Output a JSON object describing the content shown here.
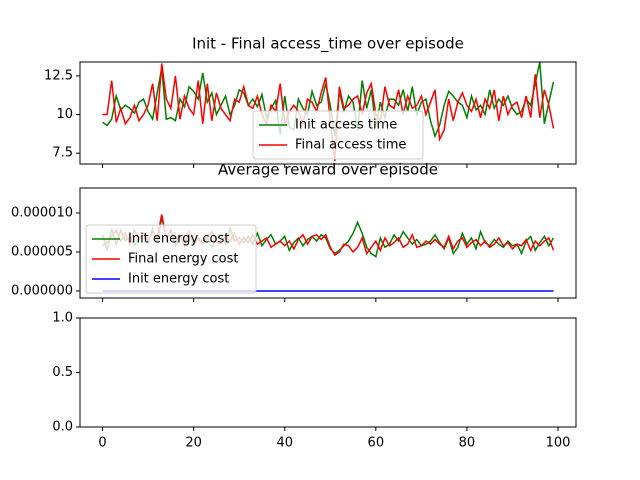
{
  "chart_data": [
    {
      "type": "line",
      "title": "Init - Final access_time over episode",
      "x": [
        0,
        1,
        2,
        3,
        4,
        5,
        6,
        7,
        8,
        9,
        10,
        11,
        12,
        13,
        14,
        15,
        16,
        17,
        18,
        19,
        20,
        21,
        22,
        23,
        24,
        25,
        26,
        27,
        28,
        29,
        30,
        31,
        32,
        33,
        34,
        35,
        36,
        37,
        38,
        39,
        40,
        41,
        42,
        43,
        44,
        45,
        46,
        47,
        48,
        49,
        50,
        51,
        52,
        53,
        54,
        55,
        56,
        57,
        58,
        59,
        60,
        61,
        62,
        63,
        64,
        65,
        66,
        67,
        68,
        69,
        70,
        71,
        72,
        73,
        74,
        75,
        76,
        77,
        78,
        79,
        80,
        81,
        82,
        83,
        84,
        85,
        86,
        87,
        88,
        89,
        90,
        91,
        92,
        93,
        94,
        95,
        96,
        97,
        98,
        99
      ],
      "series": [
        {
          "name": "Init access time",
          "color": "#008000",
          "values": [
            9.5,
            9.3,
            9.7,
            11.2,
            10.3,
            10.6,
            10.4,
            10.1,
            10.8,
            11.0,
            10.2,
            9.7,
            11.4,
            13.0,
            9.7,
            9.8,
            9.6,
            11.0,
            10.5,
            11.8,
            11.5,
            11.0,
            12.7,
            10.8,
            11.4,
            10.0,
            10.6,
            11.2,
            10.0,
            10.6,
            11.6,
            11.4,
            10.6,
            11.0,
            10.5,
            11.3,
            9.8,
            10.4,
            10.9,
            8.7,
            11.2,
            9.2,
            9.0,
            11.0,
            10.4,
            10.0,
            11.5,
            10.6,
            10.8,
            12.0,
            10.6,
            8.6,
            11.5,
            10.2,
            11.2,
            10.8,
            9.0,
            12.2,
            10.4,
            11.6,
            9.2,
            10.8,
            9.8,
            11.0,
            11.0,
            10.6,
            11.6,
            10.2,
            11.8,
            10.0,
            10.8,
            11.0,
            9.6,
            8.6,
            9.3,
            10.6,
            11.5,
            11.2,
            10.8,
            10.6,
            9.8,
            11.2,
            10.3,
            10.6,
            10.0,
            11.6,
            10.4,
            11.0,
            10.6,
            11.2,
            10.4,
            10.0,
            10.2,
            11.0,
            10.6,
            12.0,
            13.4,
            9.4,
            10.8,
            12.1
          ]
        },
        {
          "name": "Final access time",
          "color": "#ff0000",
          "values": [
            10.0,
            10.0,
            12.2,
            9.5,
            10.4,
            9.4,
            9.8,
            10.6,
            9.6,
            10.0,
            10.6,
            12.0,
            9.6,
            13.3,
            11.0,
            10.4,
            12.5,
            9.7,
            11.2,
            10.4,
            10.0,
            12.2,
            9.4,
            12.0,
            9.6,
            11.4,
            10.4,
            10.0,
            9.6,
            11.0,
            10.8,
            11.8,
            10.6,
            10.4,
            11.2,
            10.0,
            9.4,
            10.6,
            10.2,
            12.0,
            9.4,
            10.2,
            10.6,
            10.2,
            9.4,
            11.0,
            10.8,
            10.2,
            11.4,
            12.4,
            9.6,
            7.0,
            11.8,
            10.4,
            10.6,
            11.0,
            11.2,
            10.0,
            11.4,
            12.0,
            10.0,
            9.6,
            11.8,
            10.6,
            10.4,
            11.6,
            10.0,
            11.2,
            10.4,
            10.6,
            11.2,
            10.0,
            10.8,
            11.6,
            8.4,
            9.0,
            11.0,
            9.6,
            10.8,
            11.4,
            10.6,
            10.2,
            11.0,
            9.8,
            11.0,
            10.4,
            11.6,
            9.6,
            11.2,
            10.0,
            10.6,
            10.8,
            9.8,
            11.2,
            9.8,
            12.6,
            9.8,
            11.6,
            10.6,
            9.1
          ]
        }
      ],
      "xlim": [
        -4.95,
        103.95
      ],
      "xticks": [
        0,
        20,
        40,
        60,
        80,
        100
      ],
      "ylim": [
        6.8,
        13.4
      ],
      "yticks": [
        7.5,
        10.0,
        12.5
      ],
      "legend": "lower center"
    },
    {
      "type": "line",
      "title": "Average reward over episode",
      "x": [
        0,
        1,
        2,
        3,
        4,
        5,
        6,
        7,
        8,
        9,
        10,
        11,
        12,
        13,
        14,
        15,
        16,
        17,
        18,
        19,
        20,
        21,
        22,
        23,
        24,
        25,
        26,
        27,
        28,
        29,
        30,
        31,
        32,
        33,
        34,
        35,
        36,
        37,
        38,
        39,
        40,
        41,
        42,
        43,
        44,
        45,
        46,
        47,
        48,
        49,
        50,
        51,
        52,
        53,
        54,
        55,
        56,
        57,
        58,
        59,
        60,
        61,
        62,
        63,
        64,
        65,
        66,
        67,
        68,
        69,
        70,
        71,
        72,
        73,
        74,
        75,
        76,
        77,
        78,
        79,
        80,
        81,
        82,
        83,
        84,
        85,
        86,
        87,
        88,
        89,
        90,
        91,
        92,
        93,
        94,
        95,
        96,
        97,
        98,
        99
      ],
      "series": [
        {
          "name": "Init energy cost",
          "color": "#008000",
          "values": [
            7.2e-06,
            5.2e-06,
            8e-06,
            6e-06,
            7.8e-06,
            6.4e-06,
            7e-06,
            5.8e-06,
            6.8e-06,
            7.4e-06,
            6.2e-06,
            8e-06,
            6e-06,
            9.5e-06,
            6.6e-06,
            7.8e-06,
            5.8e-06,
            7e-06,
            6.2e-06,
            7.6e-06,
            6e-06,
            6.8e-06,
            6.2e-06,
            7e-06,
            5.6e-06,
            6.6e-06,
            7.2e-06,
            6e-06,
            8e-06,
            6.4e-06,
            6.8e-06,
            6.2e-06,
            7e-06,
            6e-06,
            7.4e-06,
            5.8e-06,
            6.6e-06,
            7.2e-06,
            6e-06,
            6.4e-06,
            7e-06,
            5.2e-06,
            6.2e-06,
            6.8e-06,
            5.8e-06,
            6.6e-06,
            7e-06,
            6.4e-06,
            7.2e-06,
            6.8e-06,
            5.4e-06,
            4.8e-06,
            5.2e-06,
            5.8e-06,
            6.4e-06,
            7.4e-06,
            8.8e-06,
            7.4e-06,
            5.6e-06,
            4.8e-06,
            4.4e-06,
            6.8e-06,
            5.6e-06,
            6e-06,
            7.2e-06,
            6.4e-06,
            7.6e-06,
            6.8e-06,
            6e-06,
            6.6e-06,
            5.8e-06,
            6e-06,
            6.4e-06,
            7.2e-06,
            6.2e-06,
            5.4e-06,
            6.8e-06,
            4.8e-06,
            5.6e-06,
            7.4e-06,
            6e-06,
            6.8e-06,
            5.4e-06,
            7.6e-06,
            6.2e-06,
            5.8e-06,
            6.6e-06,
            6e-06,
            5.6e-06,
            6.4e-06,
            5.8e-06,
            6e-06,
            4.8e-06,
            6.4e-06,
            7e-06,
            5.2e-06,
            6.2e-06,
            7e-06,
            5.8e-06,
            6.8e-06
          ]
        },
        {
          "name": "Final energy cost",
          "color": "#ff0000",
          "values": [
            5.8e-06,
            6.2e-06,
            7e-06,
            7.8e-06,
            6.4e-06,
            7.4e-06,
            6e-06,
            7.8e-06,
            6.6e-06,
            7.2e-06,
            6.6e-06,
            7.6e-06,
            6.8e-06,
            9.8e-06,
            6.6e-06,
            7.8e-06,
            6.2e-06,
            7.2e-06,
            5.8e-06,
            7.6e-06,
            6.4e-06,
            6.6e-06,
            6e-06,
            6.8e-06,
            7.6e-06,
            6.4e-06,
            6e-06,
            7e-06,
            6.4e-06,
            7.4e-06,
            6e-06,
            6.8e-06,
            6.2e-06,
            7.2e-06,
            6e-06,
            6.4e-06,
            6.8e-06,
            5.6e-06,
            6e-06,
            6.4e-06,
            5.8e-06,
            6.4e-06,
            5.4e-06,
            6.6e-06,
            7.2e-06,
            6e-06,
            7e-06,
            7.2e-06,
            6.6e-06,
            7.2e-06,
            5.6e-06,
            4.6e-06,
            5e-06,
            6e-06,
            5.8e-06,
            5e-06,
            5.6e-06,
            6.8e-06,
            4.8e-06,
            5.6e-06,
            6.4e-06,
            5.2e-06,
            6.8e-06,
            5.8e-06,
            6.2e-06,
            6.8e-06,
            5.6e-06,
            6e-06,
            7.2e-06,
            5.6e-06,
            5.8e-06,
            6.4e-06,
            6e-06,
            6.6e-06,
            6e-06,
            5.6e-06,
            7e-06,
            5.4e-06,
            6.4e-06,
            6.8e-06,
            5.6e-06,
            6.2e-06,
            6.6e-06,
            5.8e-06,
            6.4e-06,
            5.6e-06,
            6e-06,
            6.8e-06,
            5.8e-06,
            6.2e-06,
            5.4e-06,
            6e-06,
            5.8e-06,
            6.6e-06,
            5.2e-06,
            6.4e-06,
            5.8e-06,
            6.4e-06,
            6.8e-06,
            5.2e-06
          ]
        },
        {
          "name": "Init energy cost",
          "color": "#0000ff",
          "values": [
            0,
            0,
            0,
            0,
            0,
            0,
            0,
            0,
            0,
            0,
            0,
            0,
            0,
            0,
            0,
            0,
            0,
            0,
            0,
            0,
            0,
            0,
            0,
            0,
            0,
            0,
            0,
            0,
            0,
            0,
            0,
            0,
            0,
            0,
            0,
            0,
            0,
            0,
            0,
            0,
            0,
            0,
            0,
            0,
            0,
            0,
            0,
            0,
            0,
            0,
            0,
            0,
            0,
            0,
            0,
            0,
            0,
            0,
            0,
            0,
            0,
            0,
            0,
            0,
            0,
            0,
            0,
            0,
            0,
            0,
            0,
            0,
            0,
            0,
            0,
            0,
            0,
            0,
            0,
            0,
            0,
            0,
            0,
            0,
            0,
            0,
            0,
            0,
            0,
            0,
            0,
            0,
            0,
            0,
            0,
            0,
            0,
            0,
            0,
            0
          ]
        }
      ],
      "xlim": [
        -4.95,
        103.95
      ],
      "xticks": [
        0,
        20,
        40,
        60,
        80,
        100
      ],
      "ylim": [
        -9e-07,
        1.32e-05
      ],
      "yticks": [
        {
          "value": 0,
          "label": "0.000000"
        },
        {
          "value": 5e-06,
          "label": "0.000005"
        },
        {
          "value": 1e-05,
          "label": "0.000010"
        }
      ],
      "legend": "lower left"
    },
    {
      "type": "line",
      "xlim": [
        -4.95,
        103.95
      ],
      "xticks": [
        0,
        20,
        40,
        60,
        80,
        100
      ],
      "ylim": [
        0,
        1
      ],
      "yticks": [
        {
          "value": 0,
          "label": "0.0"
        },
        {
          "value": 0.5,
          "label": "0.5"
        },
        {
          "value": 1,
          "label": "1.0"
        }
      ]
    }
  ]
}
